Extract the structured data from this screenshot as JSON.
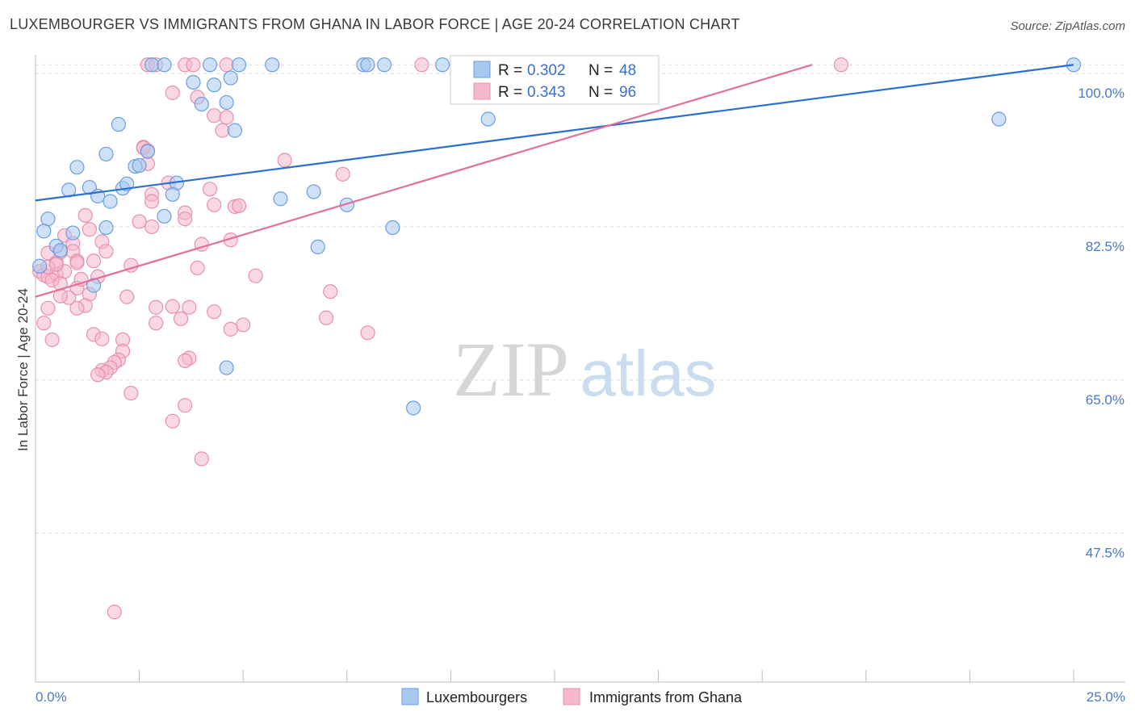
{
  "title": "LUXEMBOURGER VS IMMIGRANTS FROM GHANA IN LABOR FORCE | AGE 20-24 CORRELATION CHART",
  "source": "Source: ZipAtlas.com",
  "watermark": {
    "zip": "ZIP",
    "atlas": "atlas"
  },
  "colors": {
    "blue_fill": "#a8c8f0",
    "blue_stroke": "#6a9ee0",
    "blue_line": "#2b6fd0",
    "pink_fill": "#f5b8cc",
    "pink_stroke": "#e890ae",
    "pink_line": "#e0709a",
    "grid": "#d8d8d8",
    "axis_text": "#4a78c8"
  },
  "chart_data": {
    "type": "scatter",
    "xlabel": "",
    "ylabel": "In Labor Force | Age 20-24",
    "xlim": [
      0,
      25
    ],
    "ylim": [
      30.5,
      102.5
    ],
    "x_tick_labels": [
      "0.0%",
      "25.0%"
    ],
    "y_ticks": [
      47.5,
      65.0,
      82.5,
      100.0
    ],
    "y_tick_labels": [
      "47.5%",
      "65.0%",
      "82.5%",
      "100.0%"
    ],
    "legend": [
      {
        "r_label": "R =",
        "r_value": "0.302",
        "n_label": "N =",
        "n_value": "48"
      },
      {
        "r_label": "R =",
        "r_value": "0.343",
        "n_label": "N =",
        "n_value": "96"
      }
    ],
    "series": [
      {
        "name": "Luxembourgers",
        "color": "blue",
        "trend": [
          [
            0,
            85.5
          ],
          [
            25,
            101.0
          ]
        ],
        "points": [
          [
            2.8,
            101
          ],
          [
            3.1,
            101
          ],
          [
            4.2,
            101
          ],
          [
            4.9,
            101
          ],
          [
            5.7,
            101
          ],
          [
            7.9,
            101
          ],
          [
            8.0,
            101
          ],
          [
            8.4,
            101
          ],
          [
            9.8,
            101
          ],
          [
            25.0,
            101
          ],
          [
            3.8,
            99
          ],
          [
            4.3,
            98.7
          ],
          [
            4.7,
            99.5
          ],
          [
            4.0,
            96.5
          ],
          [
            4.6,
            96.7
          ],
          [
            2.0,
            94.2
          ],
          [
            4.8,
            93.5
          ],
          [
            10.9,
            94.8
          ],
          [
            23.2,
            94.8
          ],
          [
            1.7,
            90.8
          ],
          [
            2.7,
            91.1
          ],
          [
            1.0,
            89.3
          ],
          [
            2.4,
            89.4
          ],
          [
            2.5,
            89.5
          ],
          [
            0.8,
            86.7
          ],
          [
            1.3,
            87.0
          ],
          [
            2.1,
            86.9
          ],
          [
            2.2,
            87.4
          ],
          [
            3.4,
            87.5
          ],
          [
            1.5,
            86.0
          ],
          [
            1.8,
            85.4
          ],
          [
            3.3,
            86.2
          ],
          [
            5.9,
            85.7
          ],
          [
            6.7,
            86.5
          ],
          [
            7.5,
            85.0
          ],
          [
            0.3,
            83.4
          ],
          [
            3.1,
            83.7
          ],
          [
            0.2,
            82.0
          ],
          [
            0.9,
            81.8
          ],
          [
            1.7,
            82.4
          ],
          [
            8.6,
            82.4
          ],
          [
            0.5,
            80.3
          ],
          [
            0.6,
            79.8
          ],
          [
            6.8,
            80.2
          ],
          [
            0.1,
            78.0
          ],
          [
            1.4,
            75.8
          ],
          [
            4.6,
            66.4
          ],
          [
            9.1,
            61.8
          ]
        ]
      },
      {
        "name": "Immigrants from Ghana",
        "color": "pink",
        "trend": [
          [
            0,
            74.5
          ],
          [
            18.7,
            101.0
          ]
        ],
        "points": [
          [
            2.7,
            101
          ],
          [
            2.9,
            101
          ],
          [
            3.6,
            101
          ],
          [
            3.8,
            101
          ],
          [
            4.6,
            101
          ],
          [
            9.3,
            101
          ],
          [
            19.4,
            101
          ],
          [
            3.3,
            97.8
          ],
          [
            3.9,
            97.3
          ],
          [
            4.3,
            95.2
          ],
          [
            4.6,
            95.0
          ],
          [
            4.5,
            93.5
          ],
          [
            2.6,
            91.6
          ],
          [
            2.6,
            91.5
          ],
          [
            2.7,
            91.2
          ],
          [
            2.7,
            89.7
          ],
          [
            6.0,
            90.1
          ],
          [
            7.4,
            88.5
          ],
          [
            3.2,
            87.5
          ],
          [
            4.2,
            86.8
          ],
          [
            2.8,
            86.2
          ],
          [
            2.8,
            85.4
          ],
          [
            4.3,
            85.0
          ],
          [
            4.8,
            84.8
          ],
          [
            4.9,
            84.9
          ],
          [
            3.6,
            84.1
          ],
          [
            1.2,
            83.8
          ],
          [
            2.5,
            83.1
          ],
          [
            3.6,
            83.4
          ],
          [
            2.8,
            82.5
          ],
          [
            1.3,
            82.2
          ],
          [
            0.7,
            81.5
          ],
          [
            0.9,
            80.6
          ],
          [
            1.6,
            80.8
          ],
          [
            4.0,
            80.5
          ],
          [
            4.7,
            81.0
          ],
          [
            0.6,
            79.6
          ],
          [
            0.9,
            79.7
          ],
          [
            1.7,
            79.7
          ],
          [
            0.3,
            79.5
          ],
          [
            1.0,
            78.6
          ],
          [
            1.0,
            78.4
          ],
          [
            1.4,
            78.6
          ],
          [
            0.5,
            78.4
          ],
          [
            2.3,
            78.1
          ],
          [
            0.1,
            77.4
          ],
          [
            0.2,
            77.0
          ],
          [
            0.3,
            76.8
          ],
          [
            0.5,
            77.1
          ],
          [
            0.7,
            77.4
          ],
          [
            3.9,
            77.8
          ],
          [
            1.5,
            76.8
          ],
          [
            0.4,
            76.4
          ],
          [
            0.6,
            76.0
          ],
          [
            5.3,
            76.9
          ],
          [
            1.0,
            75.5
          ],
          [
            0.8,
            74.4
          ],
          [
            1.3,
            74.8
          ],
          [
            0.6,
            74.6
          ],
          [
            2.2,
            74.5
          ],
          [
            7.1,
            75.1
          ],
          [
            0.3,
            73.2
          ],
          [
            1.2,
            73.5
          ],
          [
            2.9,
            73.3
          ],
          [
            3.3,
            73.4
          ],
          [
            1.0,
            73.2
          ],
          [
            3.7,
            73.3
          ],
          [
            4.3,
            72.8
          ],
          [
            0.2,
            71.5
          ],
          [
            3.5,
            72.0
          ],
          [
            7.0,
            72.1
          ],
          [
            2.9,
            71.5
          ],
          [
            1.4,
            70.2
          ],
          [
            1.6,
            69.7
          ],
          [
            2.1,
            69.6
          ],
          [
            8.0,
            70.4
          ],
          [
            0.4,
            69.6
          ],
          [
            2.1,
            68.3
          ],
          [
            3.7,
            67.5
          ],
          [
            3.6,
            67.2
          ],
          [
            2.0,
            67.3
          ],
          [
            1.9,
            67.0
          ],
          [
            1.8,
            66.4
          ],
          [
            1.6,
            66.1
          ],
          [
            1.7,
            65.9
          ],
          [
            1.5,
            65.6
          ],
          [
            2.3,
            63.5
          ],
          [
            3.6,
            62.1
          ],
          [
            3.3,
            60.3
          ],
          [
            4.0,
            56.0
          ],
          [
            1.9,
            38.5
          ],
          [
            4.7,
            70.8
          ],
          [
            5.0,
            71.3
          ],
          [
            0.3,
            77.9
          ],
          [
            0.5,
            78.2
          ],
          [
            1.1,
            76.5
          ]
        ]
      }
    ]
  }
}
